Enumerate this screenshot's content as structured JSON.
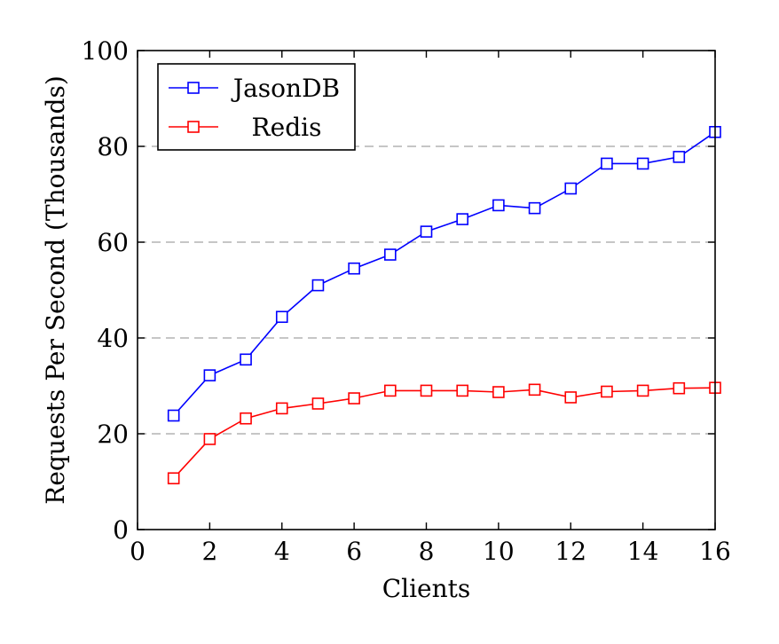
{
  "chart_data": {
    "type": "line",
    "title": "",
    "xlabel": "Clients",
    "ylabel": "Requests Per Second (Thousands)",
    "xlim": [
      0,
      16
    ],
    "ylim": [
      0,
      100
    ],
    "xticks": [
      0,
      2,
      4,
      6,
      8,
      10,
      12,
      14,
      16
    ],
    "yticks": [
      0,
      20,
      40,
      60,
      80,
      100
    ],
    "grid": "horizontal dashed",
    "legend_position": "top-left",
    "marker": "square",
    "x": [
      1,
      2,
      3,
      4,
      5,
      6,
      7,
      8,
      9,
      10,
      11,
      12,
      13,
      14,
      15,
      16
    ],
    "series": [
      {
        "name": "JasonDB",
        "color": "#0000ff",
        "values": [
          23.8,
          32.2,
          35.5,
          44.4,
          51.0,
          54.5,
          57.4,
          62.2,
          64.8,
          67.7,
          67.1,
          71.2,
          76.4,
          76.4,
          77.8,
          83.0
        ]
      },
      {
        "name": "Redis",
        "color": "#ff0000",
        "values": [
          10.7,
          18.9,
          23.2,
          25.3,
          26.3,
          27.4,
          29.0,
          29.0,
          29.0,
          28.7,
          29.2,
          27.6,
          28.8,
          29.0,
          29.5,
          29.6
        ]
      }
    ]
  }
}
